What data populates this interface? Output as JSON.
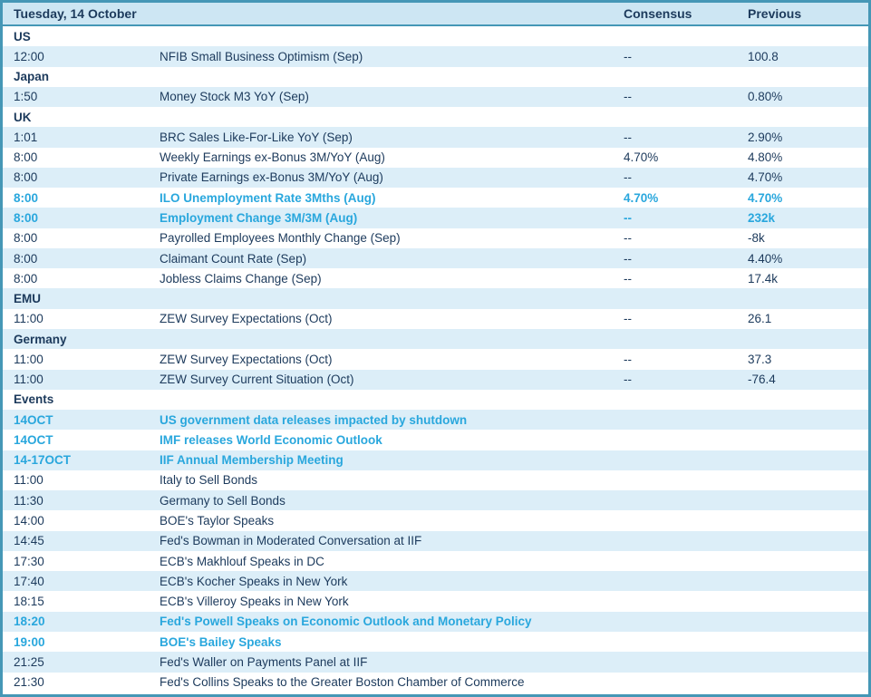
{
  "calendar": {
    "title": "Tuesday, 14 October",
    "columns": {
      "consensus": "Consensus",
      "previous": "Previous"
    },
    "colors": {
      "border": "#4597b6",
      "header_bg": "#cde6f3",
      "stripe_bg": "#dceef8",
      "text": "#1c3a5c",
      "highlight": "#29a7dd"
    },
    "rows": [
      {
        "type": "section",
        "label": "US"
      },
      {
        "type": "data",
        "time": "12:00",
        "event": "NFIB Small Business Optimism (Sep)",
        "consensus": "--",
        "previous": "100.8",
        "highlight": false
      },
      {
        "type": "section",
        "label": "Japan"
      },
      {
        "type": "data",
        "time": "1:50",
        "event": "Money Stock M3 YoY (Sep)",
        "consensus": "--",
        "previous": "0.80%",
        "highlight": false
      },
      {
        "type": "section",
        "label": "UK"
      },
      {
        "type": "data",
        "time": "1:01",
        "event": "BRC Sales Like-For-Like YoY (Sep)",
        "consensus": "--",
        "previous": "2.90%",
        "highlight": false
      },
      {
        "type": "data",
        "time": "8:00",
        "event": "Weekly Earnings ex-Bonus 3M/YoY (Aug)",
        "consensus": "4.70%",
        "previous": "4.80%",
        "highlight": false
      },
      {
        "type": "data",
        "time": "8:00",
        "event": "Private Earnings ex-Bonus 3M/YoY (Aug)",
        "consensus": "--",
        "previous": "4.70%",
        "highlight": false
      },
      {
        "type": "data",
        "time": "8:00",
        "event": "ILO Unemployment Rate 3Mths (Aug)",
        "consensus": "4.70%",
        "previous": "4.70%",
        "highlight": true
      },
      {
        "type": "data",
        "time": "8:00",
        "event": "Employment Change 3M/3M (Aug)",
        "consensus": "--",
        "previous": "232k",
        "highlight": true
      },
      {
        "type": "data",
        "time": "8:00",
        "event": "Payrolled Employees Monthly Change (Sep)",
        "consensus": "--",
        "previous": "-8k",
        "highlight": false
      },
      {
        "type": "data",
        "time": "8:00",
        "event": "Claimant Count Rate (Sep)",
        "consensus": "--",
        "previous": "4.40%",
        "highlight": false
      },
      {
        "type": "data",
        "time": "8:00",
        "event": "Jobless Claims Change (Sep)",
        "consensus": "--",
        "previous": "17.4k",
        "highlight": false
      },
      {
        "type": "section",
        "label": "EMU"
      },
      {
        "type": "data",
        "time": "11:00",
        "event": "ZEW Survey Expectations (Oct)",
        "consensus": "--",
        "previous": "26.1",
        "highlight": false
      },
      {
        "type": "section",
        "label": "Germany"
      },
      {
        "type": "data",
        "time": "11:00",
        "event": "ZEW Survey Expectations (Oct)",
        "consensus": "--",
        "previous": "37.3",
        "highlight": false
      },
      {
        "type": "data",
        "time": "11:00",
        "event": "ZEW Survey Current Situation (Oct)",
        "consensus": "--",
        "previous": "-76.4",
        "highlight": false
      },
      {
        "type": "section",
        "label": "Events"
      },
      {
        "type": "data",
        "time": "14OCT",
        "event": "US government data releases impacted by shutdown",
        "consensus": "",
        "previous": "",
        "highlight": true
      },
      {
        "type": "data",
        "time": "14OCT",
        "event": "IMF releases World Economic Outlook",
        "consensus": "",
        "previous": "",
        "highlight": true
      },
      {
        "type": "data",
        "time": "14-17OCT",
        "event": "IIF Annual Membership Meeting",
        "consensus": "",
        "previous": "",
        "highlight": true
      },
      {
        "type": "data",
        "time": "11:00",
        "event": "Italy to Sell Bonds",
        "consensus": "",
        "previous": "",
        "highlight": false
      },
      {
        "type": "data",
        "time": "11:30",
        "event": "Germany to Sell Bonds",
        "consensus": "",
        "previous": "",
        "highlight": false
      },
      {
        "type": "data",
        "time": "14:00",
        "event": "BOE's Taylor Speaks",
        "consensus": "",
        "previous": "",
        "highlight": false
      },
      {
        "type": "data",
        "time": "14:45",
        "event": "Fed's Bowman in Moderated Conversation at IIF",
        "consensus": "",
        "previous": "",
        "highlight": false
      },
      {
        "type": "data",
        "time": "17:30",
        "event": "ECB's Makhlouf Speaks in DC",
        "consensus": "",
        "previous": "",
        "highlight": false
      },
      {
        "type": "data",
        "time": "17:40",
        "event": "ECB's Kocher Speaks in New York",
        "consensus": "",
        "previous": "",
        "highlight": false
      },
      {
        "type": "data",
        "time": "18:15",
        "event": "ECB's Villeroy Speaks in New York",
        "consensus": "",
        "previous": "",
        "highlight": false
      },
      {
        "type": "data",
        "time": "18:20",
        "event": "Fed's Powell Speaks on Economic Outlook and Monetary Policy",
        "consensus": "",
        "previous": "",
        "highlight": true
      },
      {
        "type": "data",
        "time": "19:00",
        "event": "BOE's Bailey Speaks",
        "consensus": "",
        "previous": "",
        "highlight": true
      },
      {
        "type": "data",
        "time": "21:25",
        "event": "Fed's Waller on Payments Panel at IIF",
        "consensus": "",
        "previous": "",
        "highlight": false
      },
      {
        "type": "data",
        "time": "21:30",
        "event": "Fed's Collins Speaks to the Greater Boston Chamber of Commerce",
        "consensus": "",
        "previous": "",
        "highlight": false
      }
    ]
  }
}
